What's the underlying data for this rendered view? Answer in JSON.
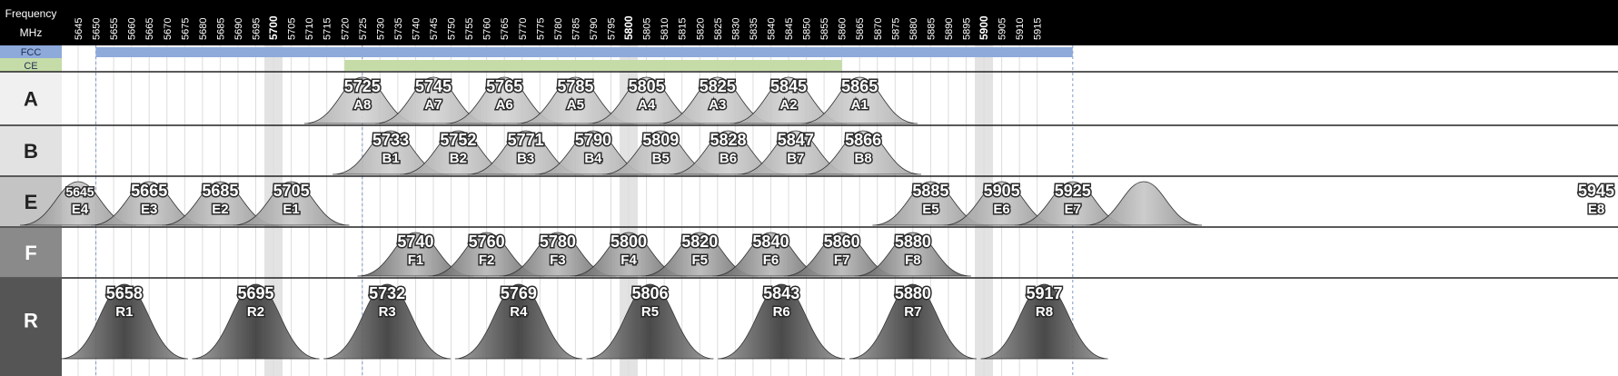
{
  "header": {
    "label_line1": "Frequency",
    "label_line2": "MHz",
    "ticks": [
      "5645",
      "5650",
      "5655",
      "5660",
      "5665",
      "5670",
      "5675",
      "5680",
      "5685",
      "5690",
      "5695",
      "5700",
      "5705",
      "5710",
      "5715",
      "5720",
      "5725",
      "5730",
      "5735",
      "5740",
      "5745",
      "5750",
      "5755",
      "5760",
      "5765",
      "5770",
      "5775",
      "5780",
      "5785",
      "5790",
      "5795",
      "5800",
      "5805",
      "5810",
      "5815",
      "5820",
      "5825",
      "5830",
      "5835",
      "5840",
      "5845",
      "5850",
      "5855",
      "5860",
      "5865",
      "5870",
      "5875",
      "5880",
      "5885",
      "5890",
      "5895",
      "5900",
      "5905",
      "5910",
      "5915"
    ],
    "major_ticks": [
      "5700",
      "5800",
      "5900"
    ]
  },
  "regions": [
    {
      "name": "FCC",
      "start": 5650,
      "end": 5925,
      "color": "#8eaadb"
    },
    {
      "name": "CE",
      "start": 5720,
      "end": 5860,
      "color": "#c5dca8"
    }
  ],
  "highlight_columns": [
    5700,
    5800,
    5900
  ],
  "bands": [
    {
      "letter": "A",
      "label_bg": "#f0f0f0",
      "label_fg": "#222222",
      "peak_color": "#d4d4d4",
      "edge_color": "#a8a8a8",
      "channels": [
        {
          "code": "A8",
          "freq": "5725",
          "center": 5725
        },
        {
          "code": "A7",
          "freq": "5745",
          "center": 5745
        },
        {
          "code": "A6",
          "freq": "5765",
          "center": 5765
        },
        {
          "code": "A5",
          "freq": "5785",
          "center": 5785
        },
        {
          "code": "A4",
          "freq": "5805",
          "center": 5805
        },
        {
          "code": "A3",
          "freq": "5825",
          "center": 5825
        },
        {
          "code": "A2",
          "freq": "5845",
          "center": 5845
        },
        {
          "code": "A1",
          "freq": "5865",
          "center": 5865
        }
      ]
    },
    {
      "letter": "B",
      "label_bg": "#e2e2e2",
      "label_fg": "#222222",
      "peak_color": "#cfcfcf",
      "edge_color": "#9e9e9e",
      "channels": [
        {
          "code": "B1",
          "freq": "5733",
          "center": 5733
        },
        {
          "code": "B2",
          "freq": "5752",
          "center": 5752
        },
        {
          "code": "B3",
          "freq": "5771",
          "center": 5771
        },
        {
          "code": "B4",
          "freq": "5790",
          "center": 5790
        },
        {
          "code": "B5",
          "freq": "5809",
          "center": 5809
        },
        {
          "code": "B6",
          "freq": "5828",
          "center": 5828
        },
        {
          "code": "B7",
          "freq": "5847",
          "center": 5847
        },
        {
          "code": "B8",
          "freq": "5866",
          "center": 5866
        }
      ]
    },
    {
      "letter": "E",
      "label_bg": "#c4c4c4",
      "label_fg": "#222222",
      "peak_color": "#c8c8c8",
      "edge_color": "#8a8a8a",
      "channels": [
        {
          "code": "E4",
          "freq": "5645",
          "center": 5645
        },
        {
          "code": "E3",
          "freq": "5665",
          "center": 5665
        },
        {
          "code": "E2",
          "freq": "5685",
          "center": 5685
        },
        {
          "code": "E1",
          "freq": "5705",
          "center": 5705
        },
        {
          "code": "E5",
          "freq": "5885",
          "center": 5885
        },
        {
          "code": "E6",
          "freq": "5905",
          "center": 5905
        },
        {
          "code": "E7",
          "freq": "5925",
          "center": 5925
        },
        {
          "code": "E8",
          "freq": "5945",
          "center": 5945
        }
      ]
    },
    {
      "letter": "F",
      "label_bg": "#8a8a8a",
      "label_fg": "#ffffff",
      "peak_color": "#b8b8b8",
      "edge_color": "#5a5a5a",
      "channels": [
        {
          "code": "F1",
          "freq": "5740",
          "center": 5740
        },
        {
          "code": "F2",
          "freq": "5760",
          "center": 5760
        },
        {
          "code": "F3",
          "freq": "5780",
          "center": 5780
        },
        {
          "code": "F4",
          "freq": "5800",
          "center": 5800
        },
        {
          "code": "F5",
          "freq": "5820",
          "center": 5820
        },
        {
          "code": "F6",
          "freq": "5840",
          "center": 5840
        },
        {
          "code": "F7",
          "freq": "5860",
          "center": 5860
        },
        {
          "code": "F8",
          "freq": "5880",
          "center": 5880
        }
      ]
    },
    {
      "letter": "R",
      "label_bg": "#555555",
      "label_fg": "#ffffff",
      "peak_color": "#3a3a3a",
      "edge_color": "#9a9a9a",
      "channels": [
        {
          "code": "R1",
          "freq": "5658",
          "center": 5658
        },
        {
          "code": "R2",
          "freq": "5695",
          "center": 5695
        },
        {
          "code": "R3",
          "freq": "5732",
          "center": 5732
        },
        {
          "code": "R4",
          "freq": "5769",
          "center": 5769
        },
        {
          "code": "R5",
          "freq": "5806",
          "center": 5806
        },
        {
          "code": "R6",
          "freq": "5843",
          "center": 5843
        },
        {
          "code": "R7",
          "freq": "5880",
          "center": 5880
        },
        {
          "code": "R8",
          "freq": "5917",
          "center": 5917
        }
      ]
    }
  ]
}
